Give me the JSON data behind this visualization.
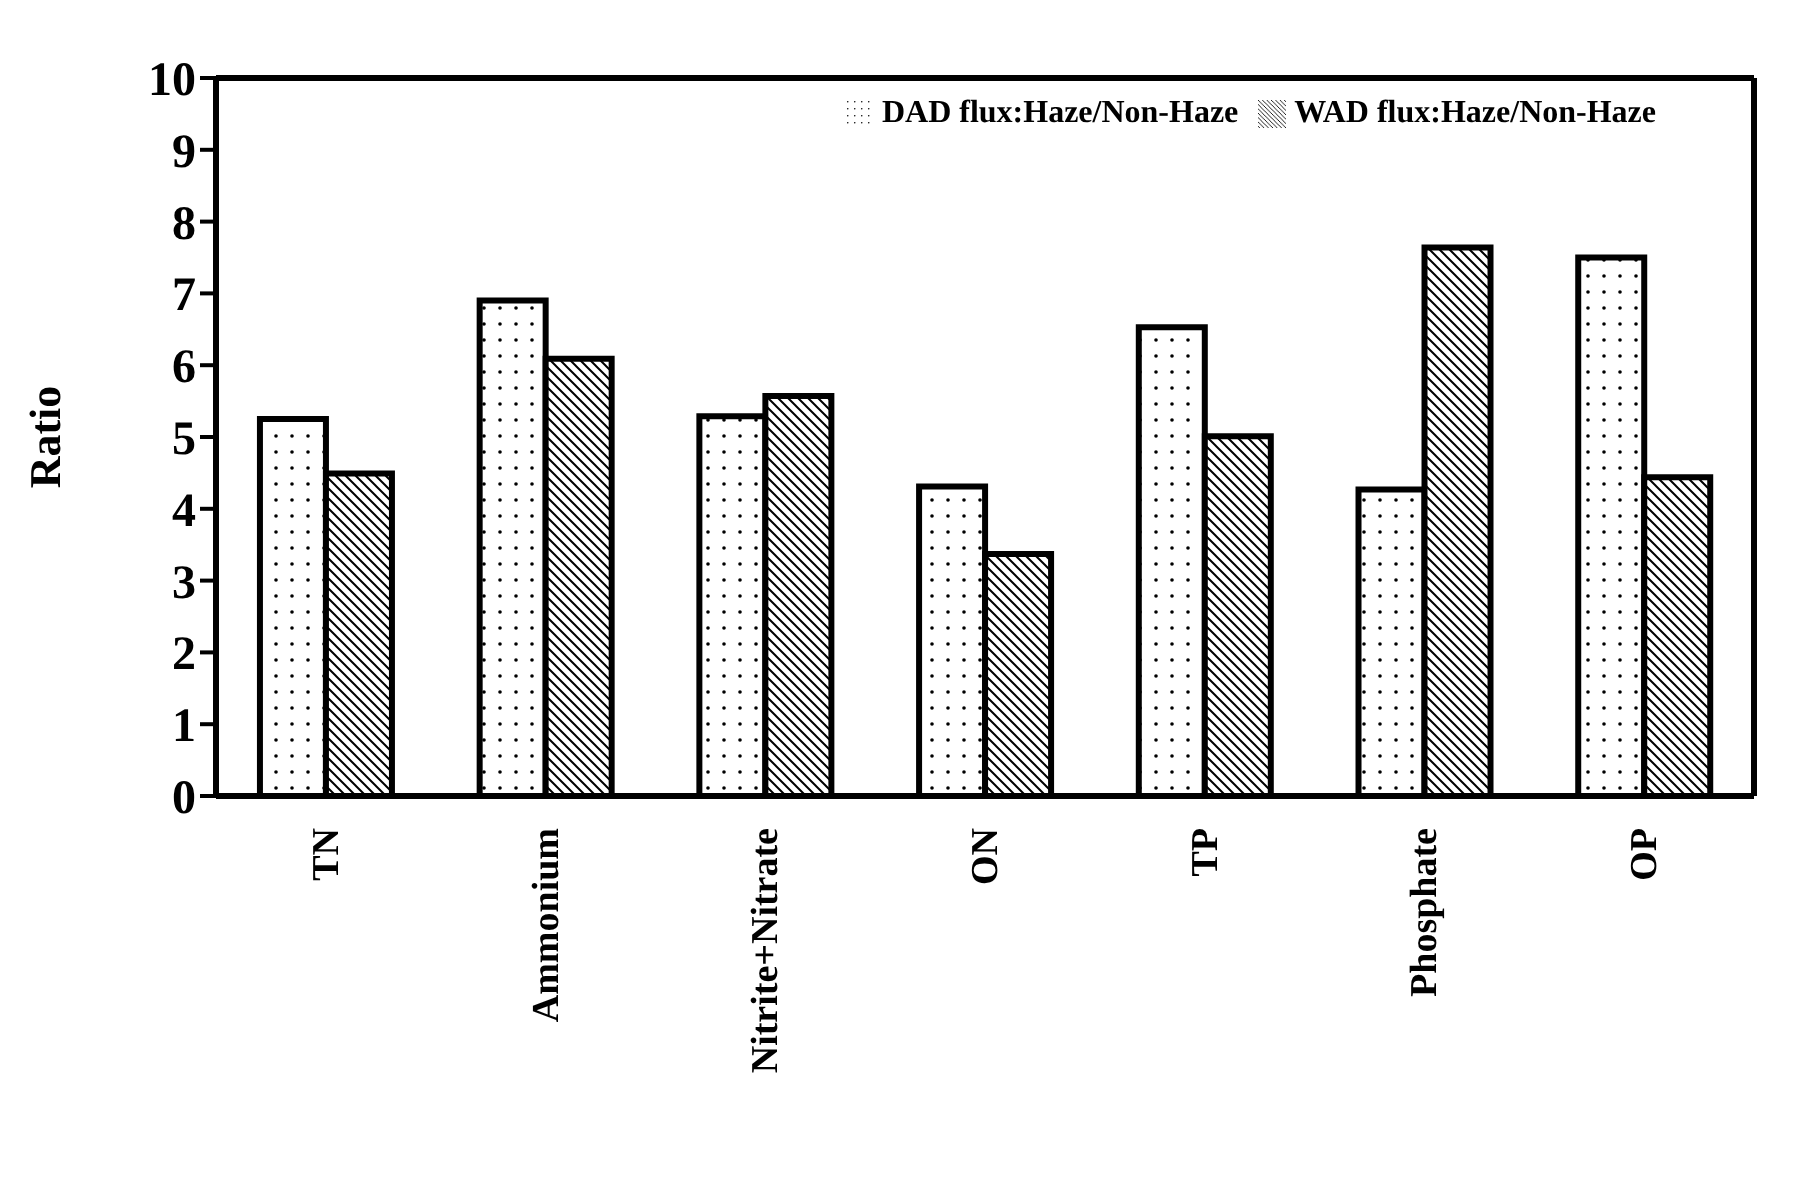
{
  "chart_data": {
    "type": "bar",
    "ylabel": "Ratio",
    "categories": [
      "TN",
      "Ammonium",
      "Nitrite+Nitrate",
      "ON",
      "TP",
      "Phosphate",
      "OP"
    ],
    "series": [
      {
        "name": "DAD flux:Haze/Non-Haze",
        "color": "#000000",
        "values": [
          5.25,
          6.9,
          5.29,
          4.31,
          6.53,
          4.27,
          7.5
        ]
      },
      {
        "name": "WAD flux:Haze/Non-Haze",
        "color": "#000000",
        "values": [
          4.49,
          6.09,
          5.57,
          3.37,
          5.01,
          7.64,
          4.44
        ]
      }
    ],
    "ylim": [
      0,
      10
    ],
    "yticks": [
      0,
      1,
      2,
      3,
      4,
      5,
      6,
      7,
      8,
      9,
      10
    ],
    "grid": false,
    "legend": "top right"
  }
}
